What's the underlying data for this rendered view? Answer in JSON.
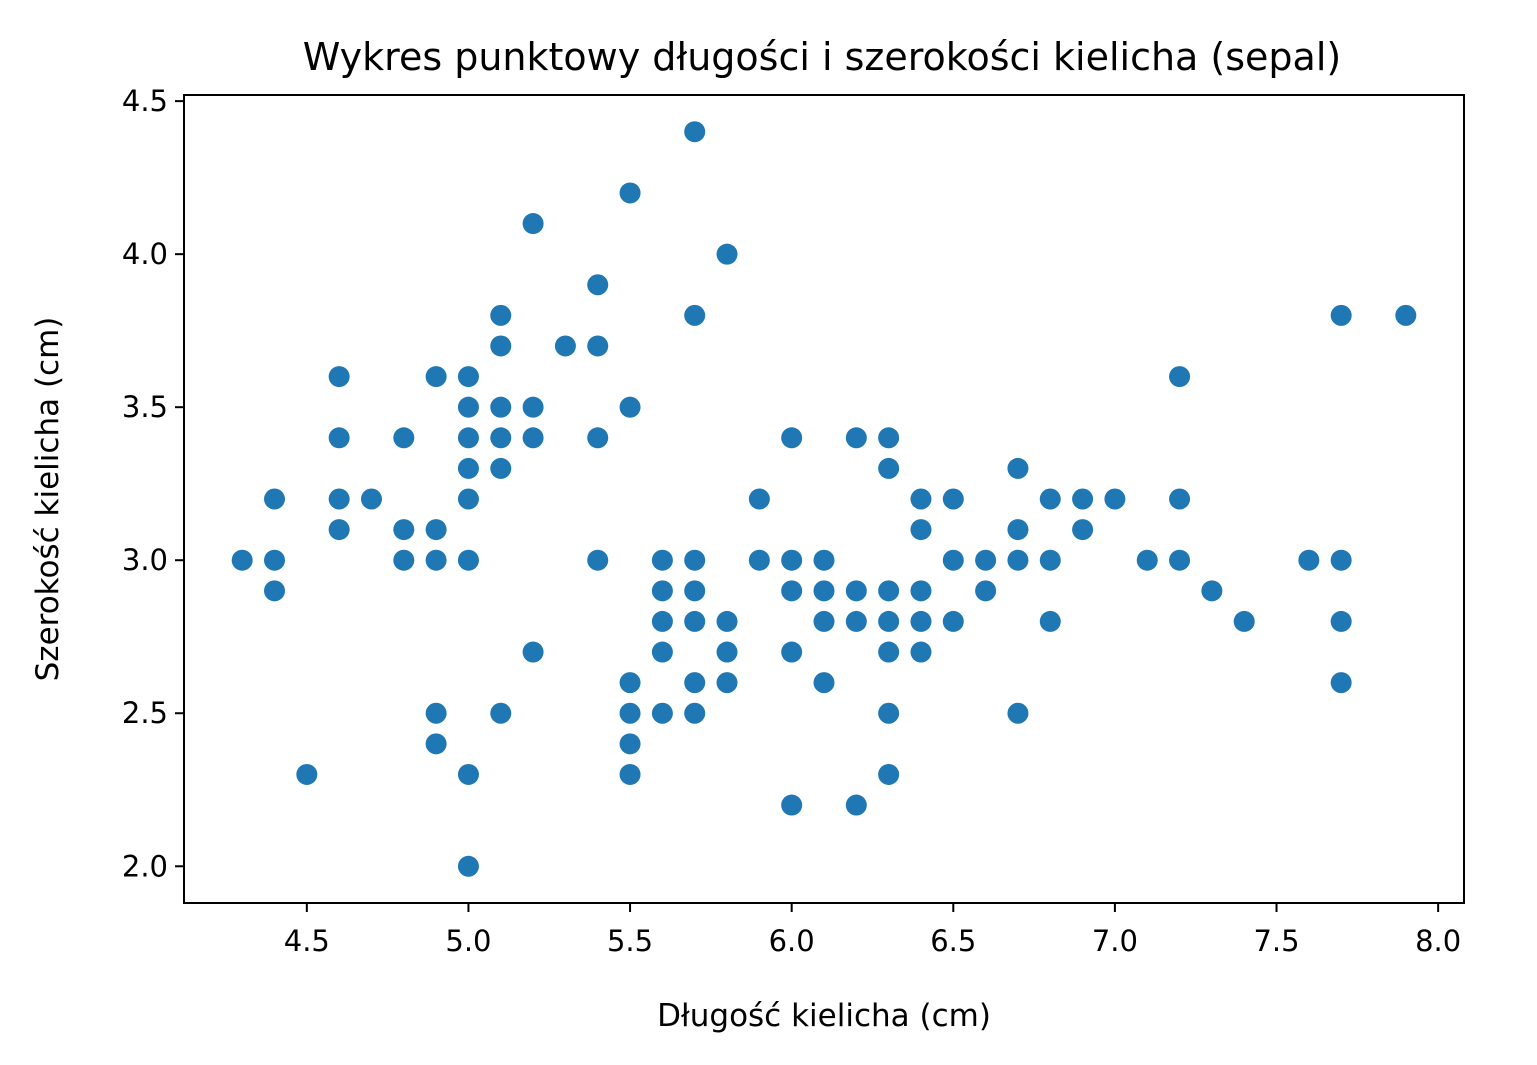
{
  "chart_data": {
    "type": "scatter",
    "title": "Wykres punktowy długości i szerokości kielicha (sepal)",
    "xlabel": "Długość kielicha (cm)",
    "ylabel": "Szerokość kielicha (cm)",
    "xlim": [
      4.12,
      8.08
    ],
    "ylim": [
      1.88,
      4.52
    ],
    "xticks": [
      4.5,
      5.0,
      5.5,
      6.0,
      6.5,
      7.0,
      7.5,
      8.0
    ],
    "xtick_labels": [
      "4.5",
      "5.0",
      "5.5",
      "6.0",
      "6.5",
      "7.0",
      "7.5",
      "8.0"
    ],
    "yticks": [
      2.0,
      2.5,
      3.0,
      3.5,
      4.0,
      4.5
    ],
    "ytick_labels": [
      "2.0",
      "2.5",
      "3.0",
      "3.5",
      "4.0",
      "4.5"
    ],
    "grid": false,
    "marker_color": "#1f77b4",
    "points": [
      [
        4.3,
        3.0
      ],
      [
        4.4,
        3.2
      ],
      [
        4.4,
        3.0
      ],
      [
        4.4,
        2.9
      ],
      [
        4.5,
        2.3
      ],
      [
        4.6,
        3.6
      ],
      [
        4.6,
        3.4
      ],
      [
        4.6,
        3.2
      ],
      [
        4.6,
        3.1
      ],
      [
        4.7,
        3.2
      ],
      [
        4.8,
        3.4
      ],
      [
        4.8,
        3.1
      ],
      [
        4.8,
        3.0
      ],
      [
        4.9,
        3.6
      ],
      [
        4.9,
        3.1
      ],
      [
        4.9,
        3.0
      ],
      [
        4.9,
        2.5
      ],
      [
        4.9,
        2.4
      ],
      [
        5.0,
        3.6
      ],
      [
        5.0,
        3.5
      ],
      [
        5.0,
        3.4
      ],
      [
        5.0,
        3.3
      ],
      [
        5.0,
        3.2
      ],
      [
        5.0,
        3.0
      ],
      [
        5.0,
        2.3
      ],
      [
        5.0,
        2.0
      ],
      [
        5.1,
        3.8
      ],
      [
        5.1,
        3.7
      ],
      [
        5.1,
        3.5
      ],
      [
        5.1,
        3.4
      ],
      [
        5.1,
        3.3
      ],
      [
        5.1,
        2.5
      ],
      [
        5.2,
        4.1
      ],
      [
        5.2,
        3.5
      ],
      [
        5.2,
        3.4
      ],
      [
        5.2,
        2.7
      ],
      [
        5.3,
        3.7
      ],
      [
        5.4,
        3.9
      ],
      [
        5.4,
        3.7
      ],
      [
        5.4,
        3.4
      ],
      [
        5.4,
        3.0
      ],
      [
        5.5,
        4.2
      ],
      [
        5.5,
        3.5
      ],
      [
        5.5,
        2.6
      ],
      [
        5.5,
        2.5
      ],
      [
        5.5,
        2.4
      ],
      [
        5.5,
        2.3
      ],
      [
        5.6,
        3.0
      ],
      [
        5.6,
        2.9
      ],
      [
        5.6,
        2.8
      ],
      [
        5.6,
        2.7
      ],
      [
        5.6,
        2.5
      ],
      [
        5.7,
        4.4
      ],
      [
        5.7,
        3.8
      ],
      [
        5.7,
        3.0
      ],
      [
        5.7,
        2.9
      ],
      [
        5.7,
        2.8
      ],
      [
        5.7,
        2.6
      ],
      [
        5.7,
        2.5
      ],
      [
        5.8,
        4.0
      ],
      [
        5.8,
        2.8
      ],
      [
        5.8,
        2.7
      ],
      [
        5.8,
        2.6
      ],
      [
        5.9,
        3.2
      ],
      [
        5.9,
        3.0
      ],
      [
        6.0,
        3.4
      ],
      [
        6.0,
        3.0
      ],
      [
        6.0,
        2.9
      ],
      [
        6.0,
        2.7
      ],
      [
        6.0,
        2.2
      ],
      [
        6.1,
        3.0
      ],
      [
        6.1,
        2.9
      ],
      [
        6.1,
        2.8
      ],
      [
        6.1,
        2.6
      ],
      [
        6.2,
        3.4
      ],
      [
        6.2,
        2.9
      ],
      [
        6.2,
        2.8
      ],
      [
        6.2,
        2.2
      ],
      [
        6.3,
        3.4
      ],
      [
        6.3,
        3.3
      ],
      [
        6.3,
        2.9
      ],
      [
        6.3,
        2.8
      ],
      [
        6.3,
        2.7
      ],
      [
        6.3,
        2.5
      ],
      [
        6.3,
        2.3
      ],
      [
        6.4,
        3.2
      ],
      [
        6.4,
        3.1
      ],
      [
        6.4,
        2.9
      ],
      [
        6.4,
        2.8
      ],
      [
        6.4,
        2.7
      ],
      [
        6.5,
        3.2
      ],
      [
        6.5,
        3.0
      ],
      [
        6.5,
        2.8
      ],
      [
        6.6,
        3.0
      ],
      [
        6.6,
        2.9
      ],
      [
        6.7,
        3.3
      ],
      [
        6.7,
        3.1
      ],
      [
        6.7,
        3.0
      ],
      [
        6.7,
        2.5
      ],
      [
        6.8,
        3.2
      ],
      [
        6.8,
        3.0
      ],
      [
        6.8,
        2.8
      ],
      [
        6.9,
        3.2
      ],
      [
        6.9,
        3.1
      ],
      [
        7.0,
        3.2
      ],
      [
        7.1,
        3.0
      ],
      [
        7.2,
        3.6
      ],
      [
        7.2,
        3.2
      ],
      [
        7.2,
        3.0
      ],
      [
        7.3,
        2.9
      ],
      [
        7.4,
        2.8
      ],
      [
        7.6,
        3.0
      ],
      [
        7.7,
        3.8
      ],
      [
        7.7,
        3.0
      ],
      [
        7.7,
        2.8
      ],
      [
        7.7,
        2.6
      ],
      [
        7.9,
        3.8
      ]
    ]
  }
}
